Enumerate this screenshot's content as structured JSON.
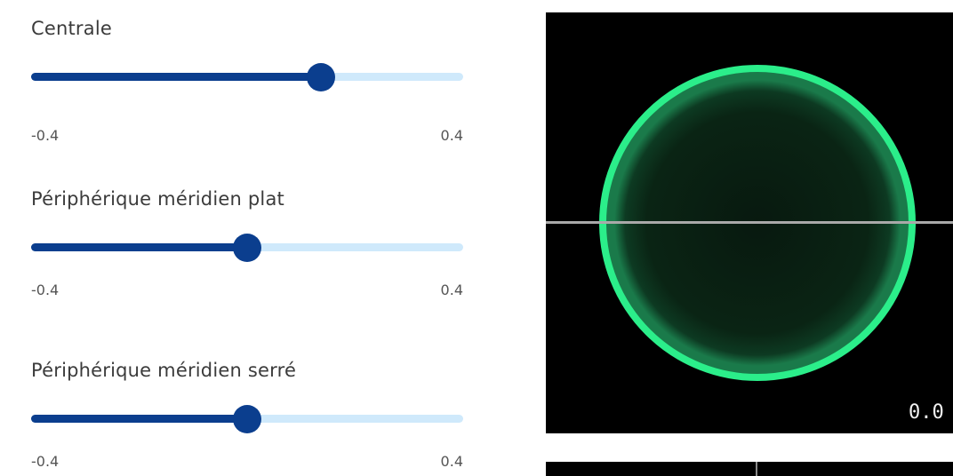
{
  "sliders": [
    {
      "label": "Centrale",
      "min_label": "-0.4",
      "max_label": "0.4",
      "level": 0.67
    },
    {
      "label": "Périphérique méridien plat",
      "min_label": "-0.4",
      "max_label": "0.4",
      "level": 0.5
    },
    {
      "label": "Périphérique méridien serré",
      "min_label": "-0.4",
      "max_label": "0.4",
      "level": 0.5
    }
  ],
  "viewer": {
    "value_text": "0.0"
  },
  "colors": {
    "track_filled": "#0b3e8e",
    "track_empty": "#cfe9fb",
    "lens_ring": "#2bee8a",
    "viewer_background": "#000000"
  }
}
